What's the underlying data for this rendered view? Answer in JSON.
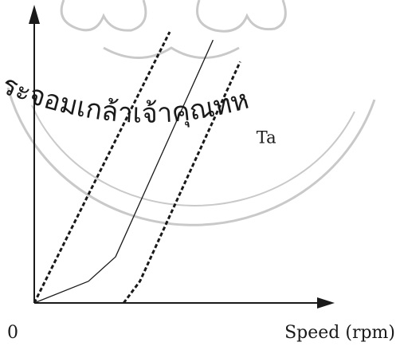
{
  "watermark": {
    "text": "ระจอมเกล้าเจ้าคุณทห",
    "color": "#c9c9c9"
  },
  "chart_data": {
    "type": "line",
    "title": "",
    "xlabel": "Speed (rpm)",
    "ylabel": "",
    "origin_label": "0",
    "xlim": [
      0,
      100
    ],
    "ylim": [
      0,
      100
    ],
    "grid": false,
    "legend": "none",
    "annotations": [
      {
        "text": "Ta",
        "x": 82,
        "y": 59
      }
    ],
    "series": [
      {
        "style": "dashed",
        "color": "#1a1a1a",
        "x": [
          0,
          50
        ],
        "y": [
          0,
          100
        ]
      },
      {
        "style": "solid",
        "color": "#1a1a1a",
        "x": [
          0,
          20,
          30,
          66
        ],
        "y": [
          0,
          8,
          17,
          97
        ]
      },
      {
        "style": "dashed",
        "color": "#1a1a1a",
        "x": [
          33,
          39,
          76
        ],
        "y": [
          0,
          8,
          89
        ]
      }
    ]
  }
}
